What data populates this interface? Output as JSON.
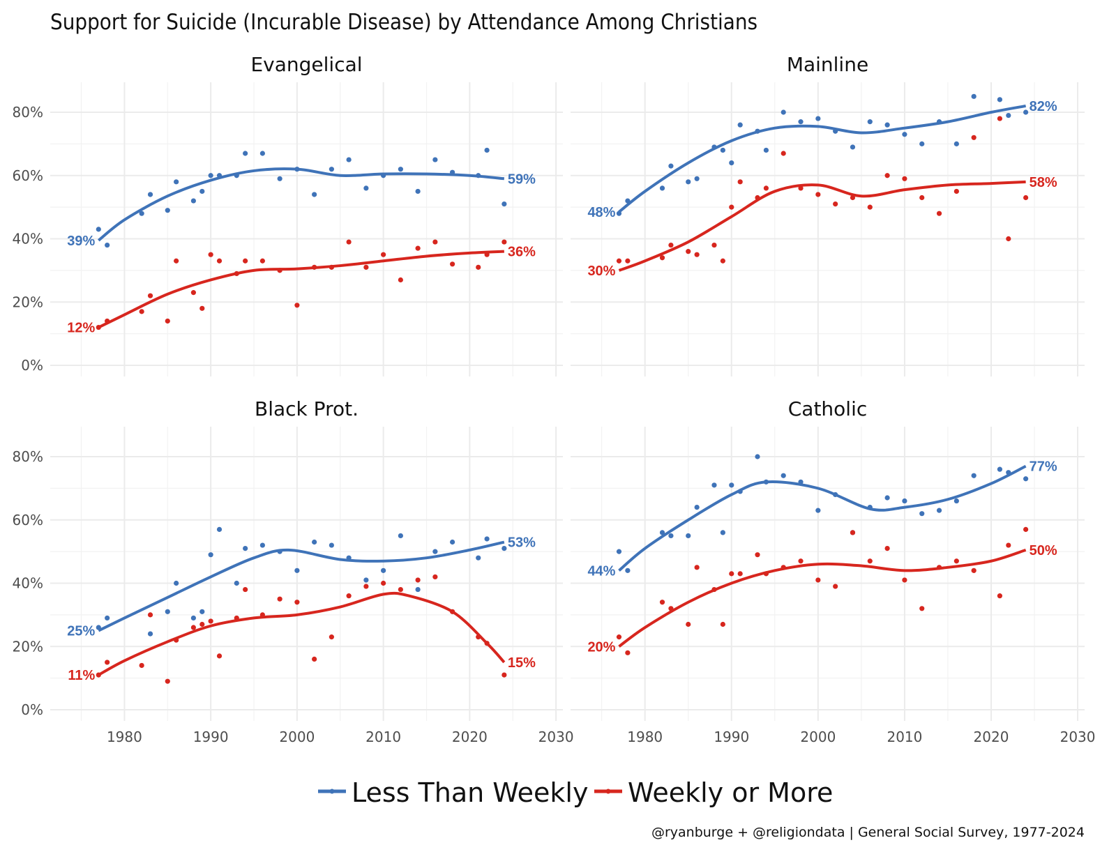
{
  "chart_data": {
    "type": "scatter",
    "title": "Support for Suicide (Incurable Disease) by Attendance Among Christians",
    "caption": "@ryanburge + @religiondata | General Social Survey, 1977-2024",
    "xlabel": "",
    "ylabel": "",
    "xlim": [
      1972,
      2030
    ],
    "ylim": [
      0,
      88
    ],
    "x_ticks": [
      1980,
      1990,
      2000,
      2010,
      2020,
      2030
    ],
    "y_ticks": [
      0,
      20,
      40,
      60,
      80
    ],
    "y_tick_labels": [
      "0%",
      "20%",
      "40%",
      "60%",
      "80%"
    ],
    "grid": true,
    "legend": {
      "position": "bottom",
      "entries": [
        {
          "name": "Less Than Weekly",
          "color": "#3f73b8"
        },
        {
          "name": "Weekly or More",
          "color": "#d7261e"
        }
      ]
    },
    "years": [
      1977,
      1978,
      1982,
      1983,
      1985,
      1986,
      1988,
      1989,
      1990,
      1991,
      1993,
      1994,
      1996,
      1998,
      2000,
      2002,
      2004,
      2006,
      2008,
      2010,
      2012,
      2014,
      2016,
      2018,
      2021,
      2022,
      2024
    ],
    "facets": [
      {
        "name": "Evangelical",
        "series": [
          {
            "name": "Less Than Weekly",
            "color": "#3f73b8",
            "points": [
              43,
              38,
              48,
              54,
              49,
              58,
              52,
              55,
              60,
              60,
              60,
              67,
              67,
              59,
              62,
              54,
              62,
              65,
              56,
              60,
              62,
              55,
              65,
              61,
              60,
              68,
              51
            ],
            "trend_x": [
              1977,
              1980,
              1985,
              1990,
              1995,
              2000,
              2005,
              2010,
              2015,
              2020,
              2024
            ],
            "trend": [
              39.5,
              46,
              53.5,
              58.5,
              61.5,
              62,
              60,
              60.5,
              60.5,
              60,
              59
            ],
            "end_label_start": "39%",
            "end_label_end": "59%"
          },
          {
            "name": "Weekly or More",
            "color": "#d7261e",
            "points": [
              12,
              14,
              17,
              22,
              14,
              33,
              23,
              18,
              35,
              33,
              29,
              33,
              33,
              30,
              19,
              31,
              31,
              39,
              31,
              35,
              27,
              37,
              39,
              32,
              31,
              35,
              39
            ],
            "trend_x": [
              1977,
              1980,
              1985,
              1990,
              1995,
              2000,
              2005,
              2010,
              2015,
              2020,
              2024
            ],
            "trend": [
              12,
              16,
              22.5,
              27,
              30,
              30.5,
              31.5,
              33,
              34.5,
              35.5,
              36
            ],
            "end_label_start": "12%",
            "end_label_end": "36%"
          }
        ]
      },
      {
        "name": "Mainline",
        "series": [
          {
            "name": "Less Than Weekly",
            "color": "#3f73b8",
            "points": [
              48,
              52,
              56,
              63,
              58,
              59,
              69,
              68,
              64,
              76,
              74,
              68,
              80,
              77,
              78,
              74,
              69,
              77,
              76,
              73,
              70,
              77,
              70,
              85,
              84,
              79,
              80
            ],
            "trend_x": [
              1977,
              1980,
              1985,
              1990,
              1995,
              2000,
              2005,
              2010,
              2015,
              2020,
              2024
            ],
            "trend": [
              48.5,
              55,
              64,
              71,
              75,
              75.5,
              73.5,
              75,
              77,
              80,
              82
            ],
            "end_label_start": "48%",
            "end_label_end": "82%"
          },
          {
            "name": "Weekly or More",
            "color": "#d7261e",
            "points": [
              33,
              33,
              34,
              38,
              36,
              35,
              38,
              33,
              50,
              58,
              53,
              56,
              67,
              56,
              54,
              51,
              53,
              50,
              60,
              59,
              53,
              48,
              55,
              72,
              78,
              40,
              53
            ],
            "trend_x": [
              1977,
              1980,
              1985,
              1990,
              1995,
              2000,
              2005,
              2010,
              2015,
              2020,
              2024
            ],
            "trend": [
              30,
              33,
              39,
              47,
              55,
              57,
              53.5,
              55.5,
              57,
              57.5,
              58
            ],
            "end_label_start": "30%",
            "end_label_end": "58%"
          }
        ]
      },
      {
        "name": "Black Prot.",
        "series": [
          {
            "name": "Less Than Weekly",
            "color": "#3f73b8",
            "points": [
              26,
              29,
              null,
              24,
              31,
              40,
              29,
              31,
              49,
              57,
              40,
              51,
              52,
              50,
              44,
              53,
              52,
              48,
              41,
              44,
              55,
              38,
              50,
              53,
              48,
              54,
              51
            ],
            "trend_x": [
              1977,
              1980,
              1985,
              1990,
              1995,
              1999,
              2005,
              2010,
              2015,
              2020,
              2024
            ],
            "trend": [
              25,
              29,
              35.5,
              42,
              48,
              50.5,
              47.5,
              47,
              48,
              50.5,
              53
            ],
            "end_label_start": "25%",
            "end_label_end": "53%"
          },
          {
            "name": "Weekly or More",
            "color": "#d7261e",
            "points": [
              11,
              15,
              14,
              30,
              9,
              22,
              26,
              27,
              28,
              17,
              29,
              38,
              30,
              35,
              34,
              16,
              23,
              36,
              39,
              40,
              38,
              41,
              42,
              31,
              23,
              21,
              11
            ],
            "trend_x": [
              1977,
              1980,
              1985,
              1990,
              1995,
              2000,
              2005,
              2010,
              2013,
              2018,
              2022,
              2024
            ],
            "trend": [
              11,
              15.5,
              21.5,
              26.5,
              29,
              30,
              32.5,
              36.5,
              36,
              31,
              21,
              15
            ],
            "end_label_start": "11%",
            "end_label_end": "15%"
          }
        ]
      },
      {
        "name": "Catholic",
        "series": [
          {
            "name": "Less Than Weekly",
            "color": "#3f73b8",
            "points": [
              50,
              44,
              56,
              55,
              55,
              64,
              71,
              56,
              71,
              69,
              80,
              72,
              74,
              72,
              63,
              68,
              56,
              64,
              67,
              66,
              62,
              63,
              66,
              74,
              76,
              75,
              73
            ],
            "trend_x": [
              1977,
              1980,
              1985,
              1990,
              1994,
              2000,
              2006,
              2010,
              2015,
              2020,
              2024
            ],
            "trend": [
              44,
              51,
              60,
              68,
              72,
              70,
              63.5,
              64,
              66.5,
              71.5,
              77
            ],
            "end_label_start": "44%",
            "end_label_end": "77%"
          },
          {
            "name": "Weekly or More",
            "color": "#d7261e",
            "points": [
              23,
              18,
              34,
              32,
              27,
              45,
              38,
              27,
              43,
              43,
              49,
              43,
              45,
              47,
              41,
              39,
              56,
              47,
              51,
              41,
              32,
              45,
              47,
              44,
              36,
              52,
              57
            ],
            "trend_x": [
              1977,
              1980,
              1985,
              1990,
              1995,
              2000,
              2005,
              2010,
              2015,
              2020,
              2024
            ],
            "trend": [
              20,
              26,
              34,
              40,
              44,
              46,
              45.5,
              44,
              45,
              47,
              50.5
            ],
            "end_label_start": "20%",
            "end_label_end": "50%"
          }
        ]
      }
    ]
  }
}
